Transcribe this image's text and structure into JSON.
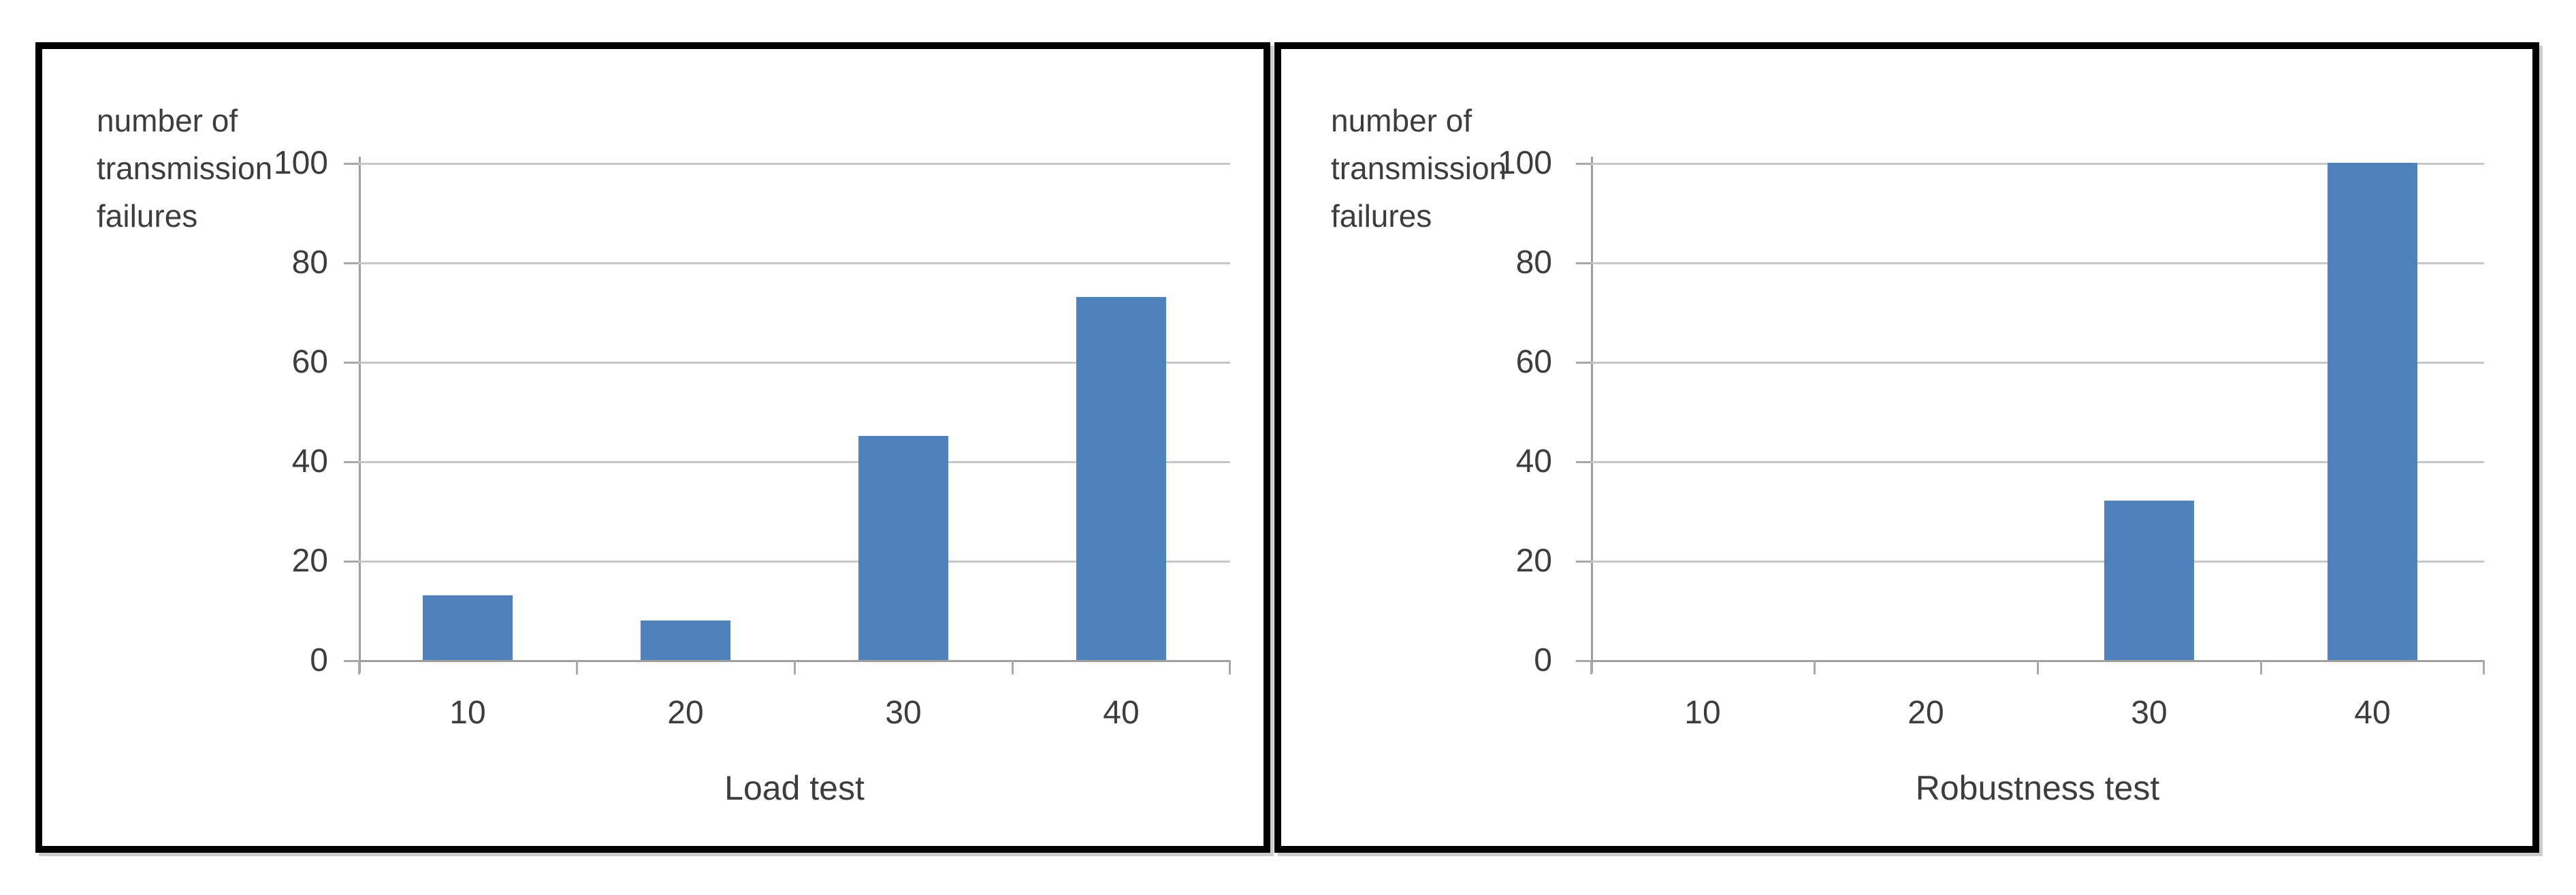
{
  "figure": {
    "kind": "two-panel bar chart figure",
    "background": "#ffffff",
    "frame_color": "#000000"
  },
  "colors": {
    "bar": "#4f81bd",
    "gridline": "#c7c7c7",
    "axis_line": "#9f9f9f",
    "text": "#3d3d3d"
  },
  "chart_data": [
    {
      "type": "bar",
      "title": "Load test",
      "ylabel": "number of transmission failures",
      "ylabel_lines": [
        "number of",
        "transmission",
        "failures"
      ],
      "categories": [
        "10",
        "20",
        "30",
        "40"
      ],
      "values": [
        13,
        8,
        45,
        73
      ],
      "y_ticks": [
        "100",
        "80",
        "60",
        "40",
        "20",
        "0"
      ],
      "ylim": [
        0,
        100
      ],
      "grid": true,
      "legend": "none",
      "bar_color": "#4f81bd"
    },
    {
      "type": "bar",
      "title": "Robustness test",
      "ylabel": "number of transmission failures",
      "ylabel_lines": [
        "number of",
        "transmission",
        "failures"
      ],
      "categories": [
        "10",
        "20",
        "30",
        "40"
      ],
      "values": [
        0,
        0,
        32,
        100
      ],
      "y_ticks": [
        "100",
        "80",
        "60",
        "40",
        "20",
        "0"
      ],
      "ylim": [
        0,
        100
      ],
      "grid": true,
      "legend": "none",
      "bar_color": "#4f81bd"
    }
  ]
}
